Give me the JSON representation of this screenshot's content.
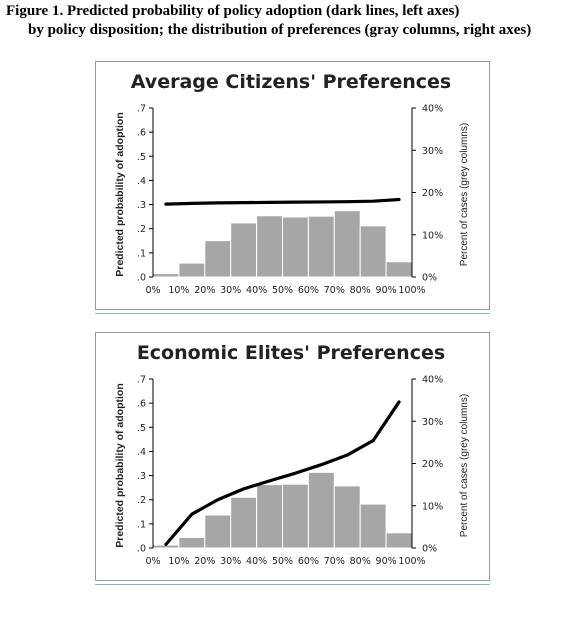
{
  "caption": {
    "line1": "Figure 1. Predicted probability of policy adoption (dark lines, left axes)",
    "line2": "by policy disposition; the distribution of preferences (gray columns, right axes)"
  },
  "colors": {
    "line": "#000000",
    "bars": "#a6a6a6",
    "bar_stroke": "#ffffff",
    "axis": "#000000"
  },
  "chart_data": [
    {
      "type": "bar",
      "title": "Average Citizens' Preferences",
      "ylabel": "Predicted probability of adoption",
      "y2label": "Percent of cases (grey columns)",
      "xticks": [
        "0%",
        "10%",
        "20%",
        "30%",
        "40%",
        "50%",
        "60%",
        "70%",
        "80%",
        "90%",
        "100%"
      ],
      "yticks": [
        ".0",
        ".1",
        ".2",
        ".3",
        ".4",
        ".5",
        ".6",
        ".7"
      ],
      "y2ticks": [
        "0%",
        "10%",
        "20%",
        "30%",
        "40%"
      ],
      "ylim": [
        0,
        0.7
      ],
      "y2lim": [
        0,
        40
      ],
      "grid": false,
      "series": [
        {
          "kind": "bar",
          "axis": "right",
          "bin_starts": [
            0,
            10,
            20,
            30,
            40,
            50,
            60,
            70,
            80,
            90
          ],
          "values": [
            0.8,
            3.3,
            8.6,
            12.8,
            14.5,
            14.2,
            14.4,
            15.7,
            12.1,
            3.6
          ]
        },
        {
          "kind": "line",
          "axis": "left",
          "x": [
            5,
            15,
            25,
            35,
            45,
            55,
            65,
            75,
            85,
            95
          ],
          "y": [
            0.302,
            0.305,
            0.307,
            0.308,
            0.309,
            0.31,
            0.311,
            0.312,
            0.314,
            0.321
          ]
        }
      ]
    },
    {
      "type": "bar",
      "title": "Economic Elites' Preferences",
      "ylabel": "Predicted probability of adoption",
      "y2label": "Percent of cases (grey columns)",
      "xticks": [
        "0%",
        "10%",
        "20%",
        "30%",
        "40%",
        "50%",
        "60%",
        "70%",
        "80%",
        "90%",
        "100%"
      ],
      "yticks": [
        ".0",
        ".1",
        ".2",
        ".3",
        ".4",
        ".5",
        ".6",
        ".7"
      ],
      "y2ticks": [
        "0%",
        "10%",
        "20%",
        "30%",
        "40%"
      ],
      "ylim": [
        0,
        0.7
      ],
      "y2lim": [
        0,
        40
      ],
      "grid": false,
      "series": [
        {
          "kind": "bar",
          "axis": "right",
          "bin_starts": [
            0,
            10,
            20,
            30,
            40,
            50,
            60,
            70,
            80,
            90
          ],
          "values": [
            0.7,
            2.5,
            7.8,
            12.0,
            15.0,
            15.1,
            17.9,
            14.7,
            10.4,
            3.6
          ]
        },
        {
          "kind": "line",
          "axis": "left",
          "x": [
            5,
            15,
            25,
            35,
            45,
            55,
            65,
            75,
            85,
            95
          ],
          "y": [
            0.015,
            0.14,
            0.2,
            0.245,
            0.278,
            0.31,
            0.345,
            0.385,
            0.445,
            0.605
          ]
        }
      ]
    }
  ]
}
